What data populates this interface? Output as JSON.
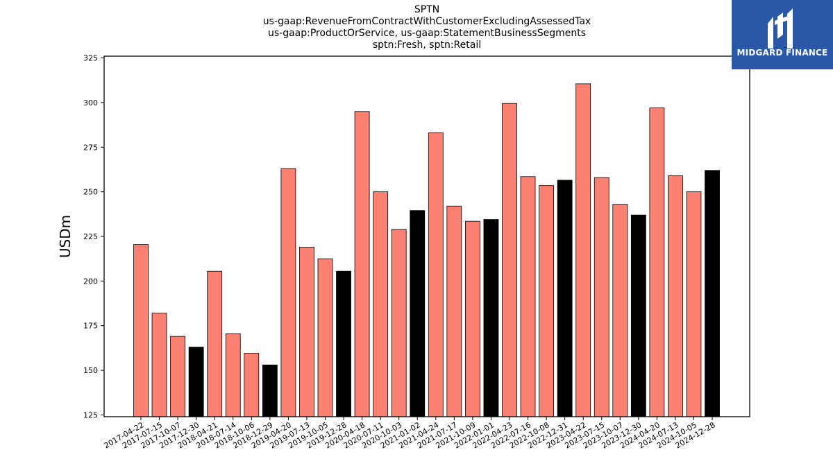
{
  "header": {
    "title_lines": [
      "SPTN",
      "us-gaap:RevenueFromContractWithCustomerExcludingAssessedTax",
      "us-gaap:ProductOrService, us-gaap:StatementBusinessSegments",
      "sptn:Fresh, sptn:Retail"
    ]
  },
  "logo": {
    "text": "MIDGARD FINANCE",
    "icon": "midgard-logo-icon",
    "background": "#2b57a8"
  },
  "chart_data": {
    "type": "bar",
    "ylabel": "USDm",
    "xlabel": "",
    "ylim": [
      124,
      326
    ],
    "yticks": [
      125,
      150,
      175,
      200,
      225,
      250,
      275,
      300,
      325
    ],
    "grid": false,
    "colors": {
      "regular": "#fa8072",
      "highlight": "#000000",
      "edge": "#000000"
    },
    "categories": [
      "2017-04-22",
      "2017-07-15",
      "2017-10-07",
      "2017-12-30",
      "2018-04-21",
      "2018-07-14",
      "2018-10-06",
      "2018-12-29",
      "2019-04-20",
      "2019-07-13",
      "2019-10-05",
      "2019-12-28",
      "2020-04-18",
      "2020-07-11",
      "2020-10-03",
      "2021-01-02",
      "2021-04-24",
      "2021-07-17",
      "2021-10-09",
      "2022-01-01",
      "2022-04-23",
      "2022-07-16",
      "2022-10-08",
      "2022-12-31",
      "2023-04-22",
      "2023-07-15",
      "2023-10-07",
      "2023-12-30",
      "2024-04-20",
      "2024-07-13",
      "2024-10-05",
      "2024-12-28"
    ],
    "values": [
      220.5,
      182,
      169,
      163,
      205.5,
      170.5,
      159.5,
      153,
      263,
      219,
      212.5,
      205.5,
      295,
      250,
      229,
      239.5,
      283,
      242,
      233.5,
      234.5,
      299.5,
      258.5,
      253.5,
      256.5,
      310.5,
      258,
      243,
      237,
      297,
      259,
      250,
      262
    ],
    "highlighted": [
      false,
      false,
      false,
      true,
      false,
      false,
      false,
      true,
      false,
      false,
      false,
      true,
      false,
      false,
      false,
      true,
      false,
      false,
      false,
      true,
      false,
      false,
      false,
      true,
      false,
      false,
      false,
      true,
      false,
      false,
      false,
      true
    ]
  }
}
